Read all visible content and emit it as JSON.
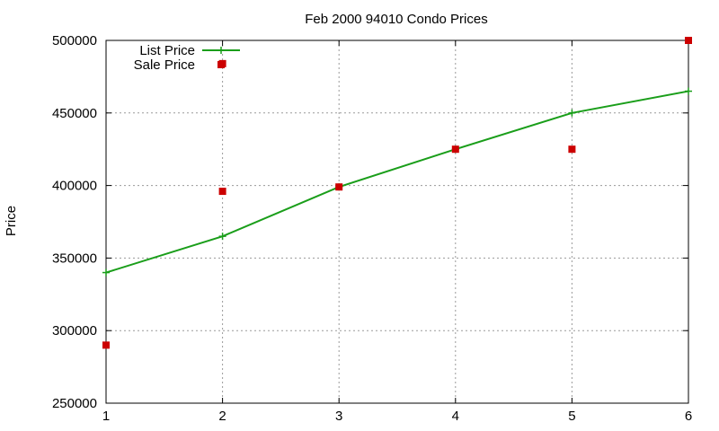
{
  "chart_data": {
    "type": "line",
    "title": "Feb 2000 94010 Condo Prices",
    "xlabel": "",
    "ylabel": "Price",
    "xlim": [
      1,
      6
    ],
    "ylim": [
      250000,
      500000
    ],
    "x_ticks": [
      "1",
      "2",
      "3",
      "4",
      "5",
      "6"
    ],
    "y_ticks": [
      "250000",
      "300000",
      "350000",
      "400000",
      "450000",
      "500000"
    ],
    "grid": true,
    "legend_position": "top-left",
    "series": [
      {
        "name": "List Price",
        "style": "linespoints",
        "marker": "plus",
        "color": "#1a9e1a",
        "x": [
          1,
          2,
          3,
          4,
          5,
          6
        ],
        "values": [
          340000,
          365000,
          399000,
          425000,
          450000,
          465000
        ]
      },
      {
        "name": "Sale Price",
        "style": "points",
        "marker": "square",
        "color": "#cc0000",
        "x": [
          1,
          2,
          2,
          3,
          4,
          5,
          6
        ],
        "values": [
          290000,
          396000,
          484000,
          399000,
          425000,
          425000,
          500000
        ]
      }
    ]
  }
}
